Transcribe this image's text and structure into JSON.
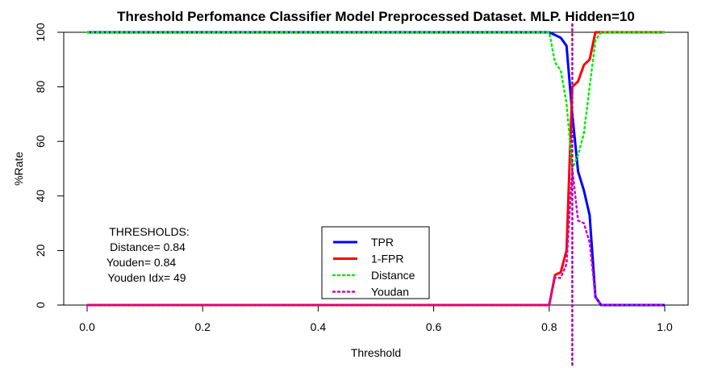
{
  "chart_data": {
    "type": "line",
    "title": "Threshold Perfomance Classifier Model Preprocessed Dataset. MLP. Hidden=10",
    "xlabel": "Threshold",
    "ylabel": "%Rate",
    "xlim": [
      0,
      1
    ],
    "ylim": [
      0,
      100
    ],
    "xticks": [
      "0.0",
      "0.2",
      "0.4",
      "0.6",
      "0.8",
      "1.0"
    ],
    "yticks": [
      "0",
      "20",
      "40",
      "60",
      "80",
      "100"
    ],
    "grid": false,
    "legend_position": "bottom-center",
    "series": [
      {
        "name": "TPR",
        "color": "#0000ff",
        "style": "solid",
        "x": [
          0,
          0.8,
          0.81,
          0.82,
          0.83,
          0.84,
          0.85,
          0.86,
          0.87,
          0.88,
          0.89,
          0.9,
          1.0
        ],
        "y": [
          100,
          100,
          99,
          98,
          95,
          70,
          49,
          42,
          33,
          3,
          0,
          0,
          0
        ]
      },
      {
        "name": "1-FPR",
        "color": "#ff0000",
        "style": "solid",
        "x": [
          0,
          0.8,
          0.81,
          0.82,
          0.83,
          0.84,
          0.85,
          0.86,
          0.87,
          0.88,
          0.89,
          1.0
        ],
        "y": [
          0,
          0,
          11,
          12,
          20,
          80,
          82,
          88,
          90,
          100,
          100,
          100
        ]
      },
      {
        "name": "Distance",
        "color": "#00ee00",
        "style": "dotted",
        "x": [
          0,
          0.8,
          0.81,
          0.82,
          0.83,
          0.84,
          0.85,
          0.86,
          0.87,
          0.88,
          0.89,
          1.0
        ],
        "y": [
          100,
          100,
          89,
          86,
          74,
          50,
          55,
          63,
          80,
          97,
          100,
          100
        ]
      },
      {
        "name": "Youdan",
        "color": "#cc00cc",
        "style": "dotted",
        "x": [
          0,
          0.8,
          0.81,
          0.82,
          0.83,
          0.84,
          0.85,
          0.86,
          0.87,
          0.88,
          0.89,
          1.0
        ],
        "y": [
          0,
          0,
          10,
          10,
          15,
          50,
          31,
          30,
          23,
          3,
          0,
          0
        ]
      }
    ],
    "vline": {
      "x": 0.84,
      "color": "#aa00aa",
      "style": "dotted"
    },
    "annotations": [
      "THRESHOLDS:",
      "Distance= 0.84",
      "Youden= 0.84",
      "Youden Idx= 49"
    ]
  }
}
